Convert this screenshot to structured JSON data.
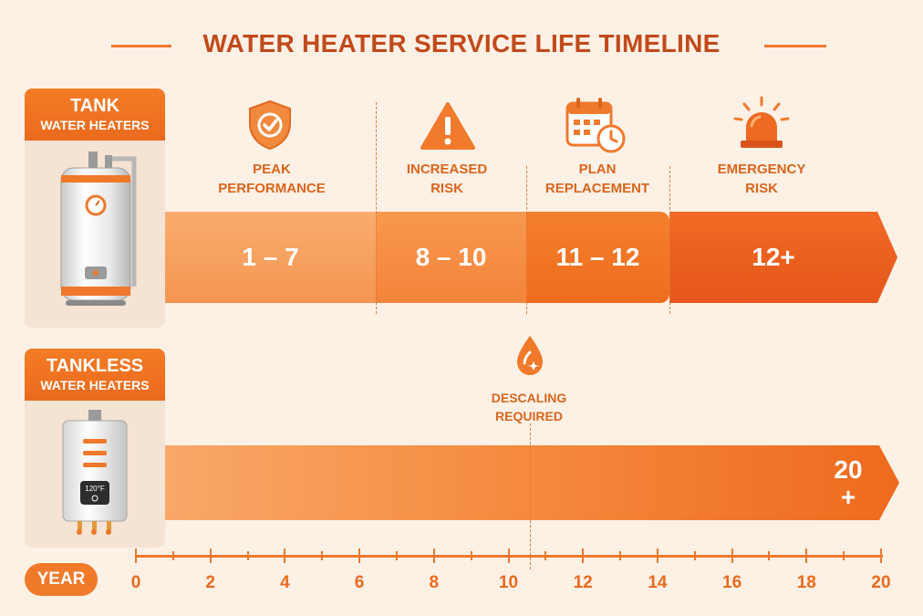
{
  "title": "WATER HEATER SERVICE LIFE TIMELINE",
  "colors": {
    "accent": "#ef7a2d",
    "title": "#c14a1a",
    "background": "#fdf1e6",
    "segment_1": "#f8a262",
    "segment_2": "#f58c43",
    "segment_3": "#f07322",
    "segment_4": "#e85e1c"
  },
  "tank": {
    "title": "TANK",
    "subtitle": "WATER HEATERS",
    "icon": "tank-water-heater-icon",
    "stages": [
      {
        "label_lines": [
          "PEAK",
          "PERFORMANCE"
        ],
        "range": "1 – 7",
        "icon": "shield-check-icon"
      },
      {
        "label_lines": [
          "INCREASED",
          "RISK"
        ],
        "range": "8 – 10",
        "icon": "warning-triangle-icon"
      },
      {
        "label_lines": [
          "PLAN",
          "REPLACEMENT"
        ],
        "range": "11 – 12",
        "icon": "calendar-clock-icon"
      },
      {
        "label_lines": [
          "EMERGENCY",
          "RISK"
        ],
        "range": "12+",
        "icon": "alarm-siren-icon"
      }
    ]
  },
  "tankless": {
    "title": "TANKLESS",
    "subtitle": "WATER HEATERS",
    "icon": "tankless-water-heater-icon",
    "display_temp": "120°F",
    "lifespan_line1": "20",
    "lifespan_line2": "+",
    "descaling": {
      "label_lines": [
        "DESCALING",
        "REQUIRED"
      ],
      "year": 10.5,
      "icon": "water-drop-icon"
    }
  },
  "axis": {
    "label": "YEAR",
    "min": 0,
    "max": 20,
    "major_ticks": [
      "0",
      "2",
      "4",
      "6",
      "8",
      "10",
      "12",
      "14",
      "16",
      "18",
      "20"
    ]
  }
}
